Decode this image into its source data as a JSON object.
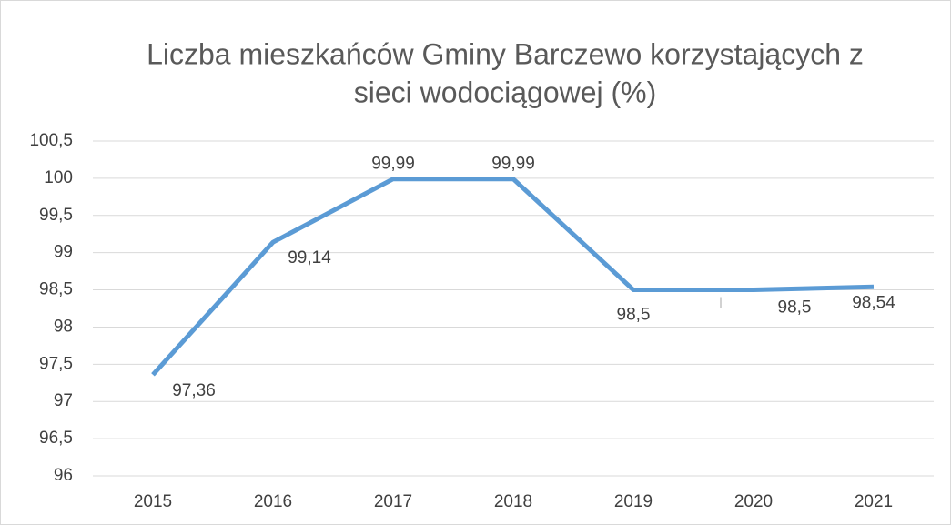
{
  "chart_data": {
    "type": "line",
    "title": [
      "Liczba mieszkańców Gminy Barczewo korzystających z",
      "sieci wodociągowej (%)"
    ],
    "categories": [
      "2015",
      "2016",
      "2017",
      "2018",
      "2019",
      "2020",
      "2021"
    ],
    "series": [
      {
        "name": "Liczba mieszkańców",
        "color": "#5b9bd5",
        "values": [
          97.36,
          99.14,
          99.99,
          99.99,
          98.5,
          98.5,
          98.54
        ],
        "value_labels": [
          "97,36",
          "99,14",
          "99,99",
          "99,99",
          "98,5",
          "98,5",
          "98,54"
        ]
      }
    ],
    "ylim": [
      96,
      100.5
    ],
    "yticks": [
      96,
      {
        "value": 96.5,
        "label": "96,5"
      },
      97,
      {
        "value": 97.5,
        "label": "97,5"
      },
      98,
      {
        "value": 98.5,
        "label": "98,5"
      },
      99,
      {
        "value": 99.5,
        "label": "99,5"
      },
      100,
      {
        "value": 100.5,
        "label": "100,5"
      }
    ],
    "grid": true
  }
}
